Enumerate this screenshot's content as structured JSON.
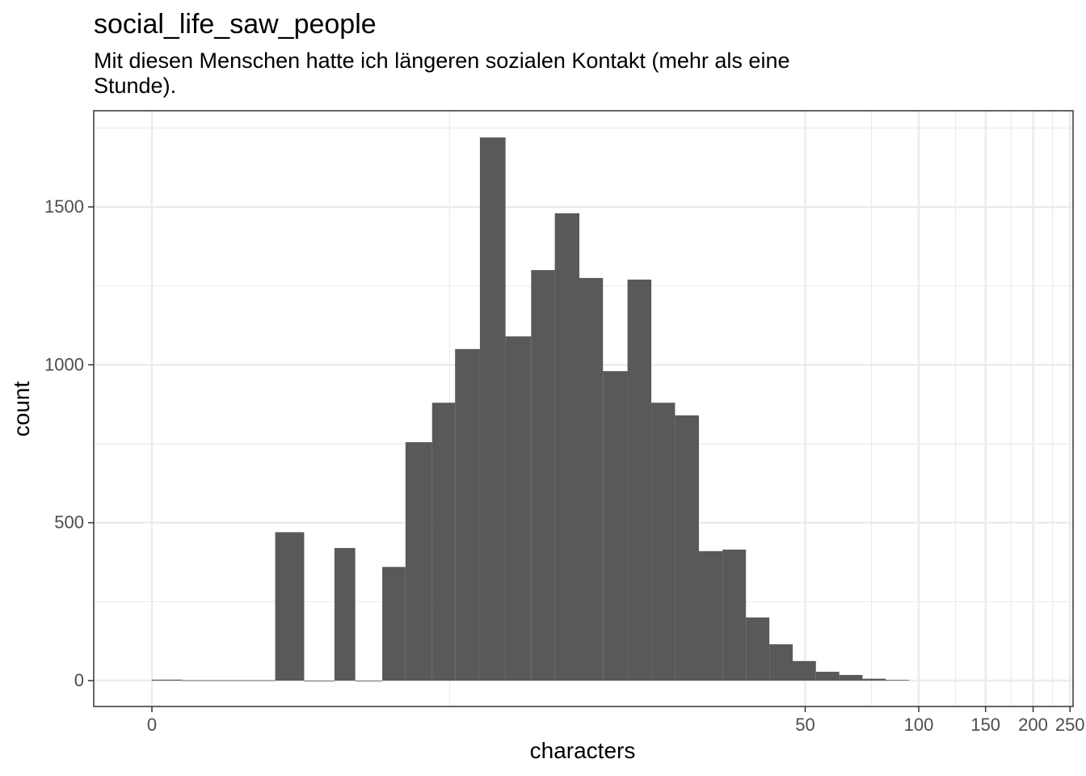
{
  "chart_data": {
    "type": "bar",
    "title": "social_life_saw_people",
    "subtitle_lines": [
      "Mit diesen Menschen hatte ich längeren sozialen Kontakt (mehr als eine",
      "Stunde)."
    ],
    "xlabel": "characters",
    "ylabel": "count",
    "x_scale": "log1p",
    "x_ticks": [
      "0",
      "50",
      "100",
      "150",
      "200",
      "250"
    ],
    "y_ticks": [
      "0",
      "500",
      "1000",
      "1500"
    ],
    "ylim": [
      0,
      1800
    ],
    "grid": true,
    "bars": [
      {
        "x_from": 0,
        "x_to": 0.2,
        "count": 3
      },
      {
        "x_from": 0.2,
        "x_to": 0.5,
        "count": 1
      },
      {
        "x_from": 0.5,
        "x_to": 0.8,
        "count": 1
      },
      {
        "x_from": 0.8,
        "x_to": 1.1,
        "count": 1
      },
      {
        "x_from": 1.1,
        "x_to": 1.5,
        "count": 470
      },
      {
        "x_from": 1.5,
        "x_to": 2.0,
        "count": 0
      },
      {
        "x_from": 2.0,
        "x_to": 2.4,
        "count": 420
      },
      {
        "x_from": 2.4,
        "x_to": 3.0,
        "count": 0
      },
      {
        "x_from": 3.0,
        "x_to": 3.6,
        "count": 360
      },
      {
        "x_from": 3.6,
        "x_to": 4.4,
        "count": 755
      },
      {
        "x_from": 4.4,
        "x_to": 5.2,
        "count": 880
      },
      {
        "x_from": 5.2,
        "x_to": 6.2,
        "count": 1050
      },
      {
        "x_from": 6.2,
        "x_to": 7.4,
        "count": 1720
      },
      {
        "x_from": 7.4,
        "x_to": 8.8,
        "count": 1090
      },
      {
        "x_from": 8.8,
        "x_to": 10.3,
        "count": 1300
      },
      {
        "x_from": 10.3,
        "x_to": 12.1,
        "count": 1480
      },
      {
        "x_from": 12.1,
        "x_to": 14.1,
        "count": 1275
      },
      {
        "x_from": 14.1,
        "x_to": 16.5,
        "count": 980
      },
      {
        "x_from": 16.5,
        "x_to": 19.2,
        "count": 1270
      },
      {
        "x_from": 19.2,
        "x_to": 22.3,
        "count": 880
      },
      {
        "x_from": 22.3,
        "x_to": 25.9,
        "count": 840
      },
      {
        "x_from": 25.9,
        "x_to": 30.0,
        "count": 410
      },
      {
        "x_from": 30.0,
        "x_to": 34.7,
        "count": 415
      },
      {
        "x_from": 34.7,
        "x_to": 40.1,
        "count": 200
      },
      {
        "x_from": 40.1,
        "x_to": 46.3,
        "count": 115
      },
      {
        "x_from": 46.3,
        "x_to": 53.4,
        "count": 62
      },
      {
        "x_from": 53.4,
        "x_to": 61.6,
        "count": 28
      },
      {
        "x_from": 61.6,
        "x_to": 71.0,
        "count": 18
      },
      {
        "x_from": 71.0,
        "x_to": 81.8,
        "count": 6
      },
      {
        "x_from": 81.8,
        "x_to": 94.3,
        "count": 2
      }
    ]
  },
  "colors": {
    "bar_fill": "#595959",
    "grid": "#ebebeb",
    "panel_border": "#333333",
    "tick_text": "#4d4d4d"
  }
}
